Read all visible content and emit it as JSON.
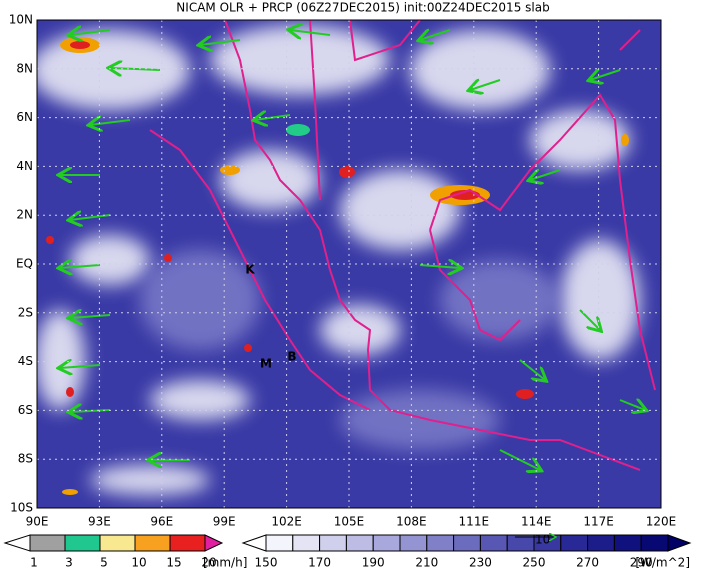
{
  "title": "NICAM OLR + PRCP (06Z27DEC2015) init:00Z24DEC2015 slab",
  "lon_labels": [
    "90E",
    "93E",
    "96E",
    "99E",
    "102E",
    "105E",
    "108E",
    "111E",
    "114E",
    "117E",
    "120E"
  ],
  "lat_labels": [
    "10N",
    "8N",
    "6N",
    "4N",
    "2N",
    "EQ",
    "2S",
    "4S",
    "6S",
    "8S",
    "10S"
  ],
  "place_labels": [
    "K",
    "M",
    "B"
  ],
  "vector_reference": "10",
  "precip_legend": {
    "labels": [
      "1",
      "3",
      "5",
      "10",
      "15",
      "20"
    ],
    "unit": "[mm/h]"
  },
  "olr_legend": {
    "labels": [
      "150",
      "170",
      "190",
      "210",
      "230",
      "250",
      "270",
      "290"
    ],
    "unit": "[W/m^2]"
  }
}
